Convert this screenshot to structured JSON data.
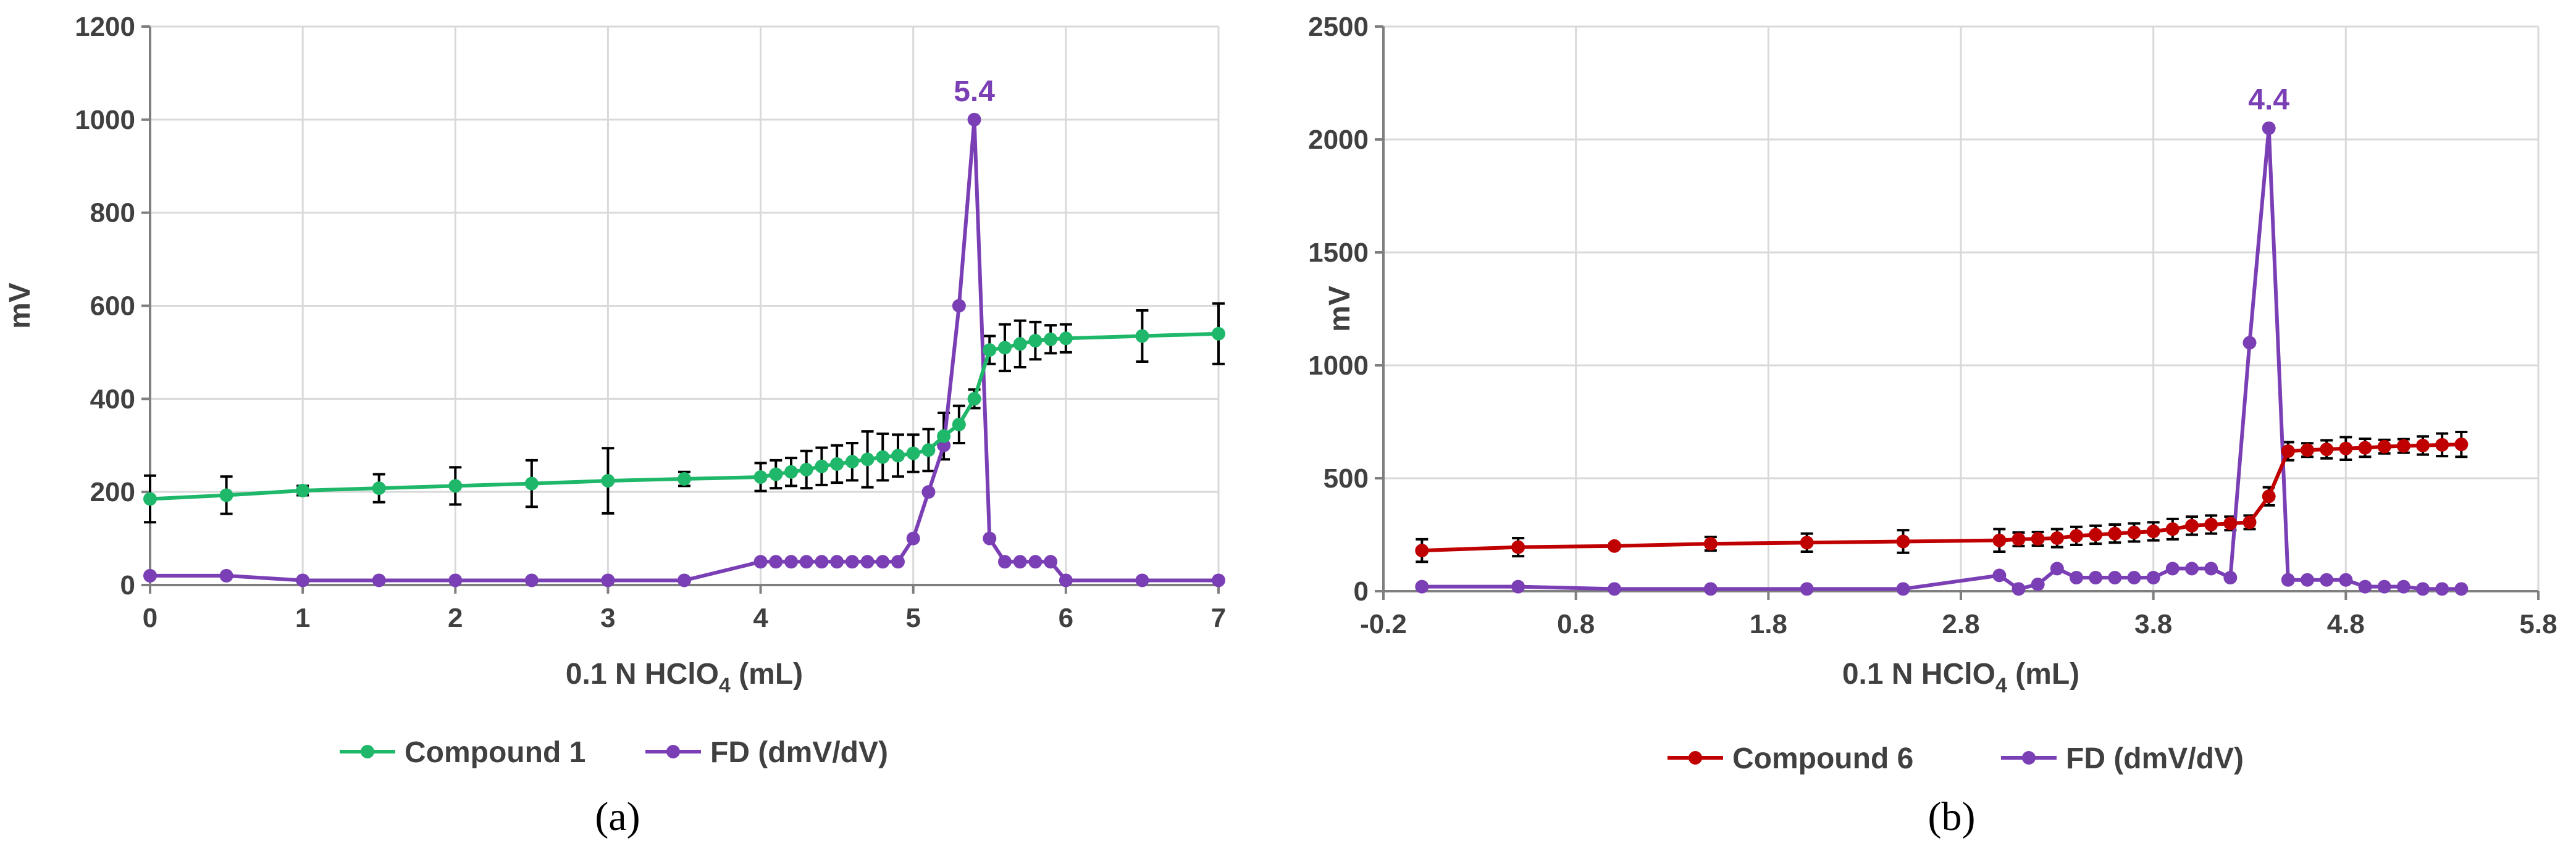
{
  "figure": {
    "colors": {
      "green": "#1fb86a",
      "purple": "#7b3fb5",
      "red": "#c00000",
      "errbar": "#000000"
    }
  },
  "chart_data": [
    {
      "id": "a",
      "type": "line",
      "panel_label": "(a)",
      "title": "",
      "xlabel": "0.1 N HClO4 (mL)",
      "xlabel_main": "0.1 N HClO",
      "xlabel_sub": "4",
      "xlabel_tail": " (mL)",
      "ylabel": "mV",
      "xlim": [
        0,
        7
      ],
      "ylim": [
        0,
        1200
      ],
      "xticks": [
        0,
        1,
        2,
        3,
        4,
        5,
        6,
        7
      ],
      "xtick_labels": [
        "0",
        "1",
        "2",
        "3",
        "4",
        "5",
        "6",
        "7"
      ],
      "yticks": [
        0,
        200,
        400,
        600,
        800,
        1000,
        1200
      ],
      "ytick_labels": [
        "0",
        "200",
        "400",
        "600",
        "800",
        "1000",
        "1200"
      ],
      "grid": true,
      "legend_position": "bottom",
      "annotation": {
        "text": "5.4",
        "x": 5.4,
        "y": 1000,
        "series": "FD (dmV/dV)"
      },
      "series": [
        {
          "name": "Compound 1",
          "color": "#1fb86a",
          "marker": "circle",
          "x": [
            0,
            0.5,
            1,
            1.5,
            2,
            2.5,
            3,
            3.5,
            4,
            4.1,
            4.2,
            4.3,
            4.4,
            4.5,
            4.6,
            4.7,
            4.8,
            4.9,
            5,
            5.1,
            5.2,
            5.3,
            5.4,
            5.5,
            5.6,
            5.7,
            5.8,
            5.9,
            6,
            6.5,
            7
          ],
          "y": [
            185,
            193,
            203,
            208,
            213,
            218,
            224,
            228,
            232,
            238,
            243,
            248,
            255,
            260,
            265,
            270,
            275,
            278,
            283,
            290,
            320,
            345,
            400,
            505,
            510,
            518,
            525,
            528,
            530,
            535,
            540
          ],
          "err": [
            50,
            40,
            10,
            30,
            40,
            50,
            70,
            15,
            30,
            30,
            30,
            40,
            40,
            40,
            40,
            60,
            50,
            45,
            40,
            45,
            50,
            40,
            20,
            30,
            50,
            50,
            40,
            30,
            30,
            55,
            65
          ]
        },
        {
          "name": "FD (dmV/dV)",
          "color": "#7b3fb5",
          "marker": "circle",
          "x": [
            0,
            0.5,
            1,
            1.5,
            2,
            2.5,
            3,
            3.5,
            4,
            4.1,
            4.2,
            4.3,
            4.4,
            4.5,
            4.6,
            4.7,
            4.8,
            4.9,
            5,
            5.1,
            5.2,
            5.3,
            5.4,
            5.5,
            5.6,
            5.7,
            5.8,
            5.9,
            6,
            6.5,
            7
          ],
          "y": [
            20,
            20,
            10,
            10,
            10,
            10,
            10,
            10,
            50,
            50,
            50,
            50,
            50,
            50,
            50,
            50,
            50,
            50,
            100,
            200,
            300,
            600,
            1000,
            100,
            50,
            50,
            50,
            50,
            10,
            10,
            10
          ]
        }
      ]
    },
    {
      "id": "b",
      "type": "line",
      "panel_label": "(b)",
      "title": "",
      "xlabel": "0.1 N HClO4 (mL)",
      "xlabel_main": "0.1 N HClO",
      "xlabel_sub": "4",
      "xlabel_tail": " (mL)",
      "ylabel": "mV",
      "xlim": [
        -0.2,
        5.8
      ],
      "ylim": [
        0,
        2500
      ],
      "xticks": [
        -0.2,
        0.8,
        1.8,
        2.8,
        3.8,
        4.8,
        5.8
      ],
      "xtick_labels": [
        "-0.2",
        "0.8",
        "1.8",
        "2.8",
        "3.8",
        "4.8",
        "5.8"
      ],
      "yticks": [
        0,
        500,
        1000,
        1500,
        2000,
        2500
      ],
      "ytick_labels": [
        "0",
        "500",
        "1000",
        "1500",
        "2000",
        "2500"
      ],
      "grid": true,
      "legend_position": "bottom",
      "annotation": {
        "text": "4.4",
        "x": 4.4,
        "y": 2050,
        "series": "FD (dmV/dV)"
      },
      "series": [
        {
          "name": "Compound 6",
          "color": "#c00000",
          "marker": "circle",
          "x": [
            0,
            0.5,
            1,
            1.5,
            2,
            2.5,
            3,
            3.1,
            3.2,
            3.3,
            3.4,
            3.5,
            3.6,
            3.7,
            3.8,
            3.9,
            4,
            4.1,
            4.2,
            4.3,
            4.4,
            4.5,
            4.6,
            4.7,
            4.8,
            4.9,
            5,
            5.1,
            5.2,
            5.3,
            5.4
          ],
          "y": [
            180,
            195,
            200,
            210,
            215,
            220,
            225,
            230,
            232,
            235,
            245,
            250,
            255,
            260,
            265,
            275,
            290,
            295,
            300,
            305,
            420,
            620,
            625,
            628,
            632,
            635,
            640,
            643,
            645,
            648,
            650
          ],
          "err": [
            50,
            40,
            10,
            30,
            40,
            50,
            50,
            30,
            30,
            40,
            40,
            40,
            40,
            40,
            40,
            45,
            40,
            40,
            30,
            30,
            40,
            40,
            30,
            40,
            50,
            40,
            30,
            30,
            40,
            50,
            55
          ]
        },
        {
          "name": "FD (dmV/dV)",
          "color": "#7b3fb5",
          "marker": "circle",
          "x": [
            0,
            0.5,
            1,
            1.5,
            2,
            2.5,
            3,
            3.1,
            3.2,
            3.3,
            3.4,
            3.5,
            3.6,
            3.7,
            3.8,
            3.9,
            4,
            4.1,
            4.2,
            4.3,
            4.4,
            4.5,
            4.6,
            4.7,
            4.8,
            4.9,
            5,
            5.1,
            5.2,
            5.3,
            5.4
          ],
          "y": [
            20,
            20,
            10,
            10,
            10,
            10,
            70,
            10,
            30,
            100,
            60,
            60,
            60,
            60,
            60,
            100,
            100,
            100,
            60,
            1100,
            2050,
            50,
            50,
            50,
            50,
            20,
            20,
            20,
            10,
            10,
            10
          ]
        }
      ]
    }
  ]
}
